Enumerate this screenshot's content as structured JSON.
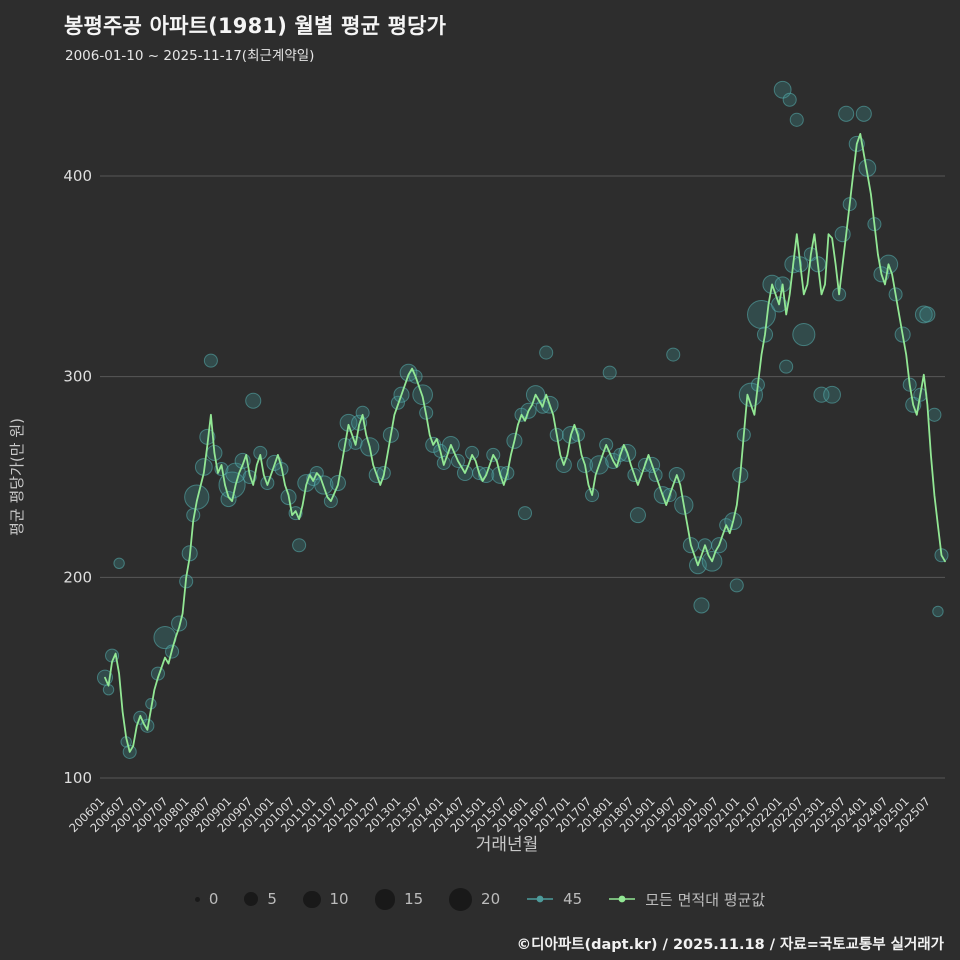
{
  "title": "봉평주공 아파트(1981) 월별 평균 평당가",
  "subtitle": "2006-01-10 ~ 2025-11-17(최근계약일)",
  "footer": "©디아파트(dapt.kr) / 2025.11.18 / 자료=국토교통부 실거래가",
  "colors": {
    "background": "#2d2d2d",
    "line": "#92e794",
    "bubble_fill": "#3f8d8d",
    "bubble_stroke": "#58b2b2",
    "grid": "#575757",
    "tick_text": "#dedede",
    "axis_title": "#c8c8c8",
    "legend_dot": "#191919",
    "teal_series": "#4d9b9b"
  },
  "legend": {
    "sizes": [
      0,
      5,
      10,
      15,
      20
    ],
    "series": [
      {
        "label": "45",
        "color": "#4d9b9b"
      },
      {
        "label": "모든 면적대 평균값",
        "color": "#92e794"
      }
    ]
  },
  "chart_data": {
    "type": "line",
    "title": "봉평주공 아파트(1981) 월별 평균 평당가",
    "xlabel": "거래년월",
    "ylabel": "평균 평당가(만 원)",
    "ylim": [
      100,
      445
    ],
    "y_ticks": [
      100,
      200,
      300,
      400
    ],
    "x_tick_step": 6,
    "start_month": "2006-01",
    "end_month": "2025-11",
    "x_ticks": [
      "200601",
      "200607",
      "200701",
      "200707",
      "200801",
      "200807",
      "200901",
      "200907",
      "201001",
      "201007",
      "201101",
      "201107",
      "201201",
      "201207",
      "201301",
      "201307",
      "201401",
      "201407",
      "201501",
      "201507",
      "201601",
      "201607",
      "201701",
      "201707",
      "201801",
      "201807",
      "201901",
      "201907",
      "202001",
      "202007",
      "202101",
      "202107",
      "202201",
      "202207",
      "202301",
      "202307",
      "202401",
      "202407",
      "202501",
      "202507"
    ],
    "series": [
      {
        "name": "모든 면적대 평균값",
        "values": [
          150,
          146,
          158,
          162,
          152,
          133,
          120,
          113,
          116,
          126,
          131,
          127,
          124,
          134,
          144,
          150,
          155,
          160,
          157,
          164,
          170,
          175,
          182,
          200,
          210,
          228,
          238,
          245,
          252,
          266,
          281,
          262,
          252,
          256,
          246,
          240,
          238,
          246,
          252,
          256,
          261,
          251,
          246,
          256,
          261,
          251,
          246,
          251,
          256,
          261,
          255,
          246,
          241,
          231,
          233,
          229,
          236,
          246,
          251,
          248,
          252,
          250,
          245,
          240,
          238,
          242,
          246,
          256,
          266,
          276,
          271,
          266,
          276,
          281,
          271,
          265,
          256,
          251,
          246,
          251,
          261,
          271,
          281,
          286,
          291,
          296,
          301,
          304,
          300,
          295,
          290,
          281,
          271,
          266,
          269,
          263,
          256,
          261,
          266,
          262,
          258,
          255,
          252,
          256,
          261,
          258,
          252,
          248,
          251,
          256,
          261,
          258,
          251,
          246,
          252,
          261,
          268,
          276,
          281,
          278,
          283,
          286,
          291,
          288,
          285,
          291,
          286,
          281,
          271,
          261,
          256,
          261,
          271,
          276,
          271,
          261,
          256,
          246,
          241,
          251,
          256,
          261,
          266,
          262,
          258,
          255,
          261,
          266,
          262,
          256,
          251,
          246,
          251,
          256,
          261,
          256,
          251,
          246,
          241,
          236,
          241,
          246,
          251,
          246,
          236,
          226,
          216,
          211,
          206,
          211,
          216,
          211,
          208,
          213,
          216,
          221,
          226,
          222,
          228,
          236,
          251,
          271,
          291,
          286,
          281,
          296,
          311,
          321,
          336,
          346,
          341,
          336,
          346,
          331,
          341,
          356,
          371,
          356,
          341,
          346,
          361,
          371,
          356,
          341,
          346,
          371,
          369,
          356,
          341,
          356,
          371,
          386,
          401,
          416,
          421,
          411,
          401,
          391,
          376,
          361,
          351,
          346,
          356,
          351,
          341,
          331,
          321,
          311,
          296,
          286,
          281,
          291,
          301,
          286,
          261,
          241,
          226,
          211,
          208
        ]
      }
    ],
    "bubbles": [
      [
        0,
        150,
        3
      ],
      [
        1,
        144,
        1
      ],
      [
        2,
        161,
        2
      ],
      [
        4,
        207,
        1
      ],
      [
        6,
        118,
        1
      ],
      [
        7,
        113,
        2
      ],
      [
        10,
        130,
        2
      ],
      [
        12,
        126,
        2
      ],
      [
        13,
        137,
        1
      ],
      [
        15,
        152,
        2
      ],
      [
        17,
        170,
        8
      ],
      [
        19,
        163,
        2
      ],
      [
        21,
        177,
        3
      ],
      [
        23,
        198,
        2
      ],
      [
        24,
        212,
        3
      ],
      [
        25,
        231,
        2
      ],
      [
        26,
        240,
        10
      ],
      [
        28,
        255,
        4
      ],
      [
        29,
        270,
        3
      ],
      [
        30,
        308,
        2
      ],
      [
        31,
        262,
        3
      ],
      [
        33,
        254,
        2
      ],
      [
        35,
        239,
        3
      ],
      [
        36,
        246,
        12
      ],
      [
        37,
        252,
        6
      ],
      [
        39,
        258,
        3
      ],
      [
        41,
        250,
        2
      ],
      [
        42,
        288,
        3
      ],
      [
        44,
        262,
        2
      ],
      [
        46,
        247,
        2
      ],
      [
        48,
        257,
        3
      ],
      [
        50,
        254,
        2
      ],
      [
        52,
        240,
        3
      ],
      [
        54,
        232,
        2
      ],
      [
        55,
        216,
        2
      ],
      [
        57,
        247,
        4
      ],
      [
        59,
        249,
        2
      ],
      [
        60,
        252,
        2
      ],
      [
        62,
        246,
        5
      ],
      [
        64,
        238,
        2
      ],
      [
        66,
        247,
        3
      ],
      [
        68,
        266,
        2
      ],
      [
        69,
        277,
        4
      ],
      [
        71,
        267,
        2
      ],
      [
        72,
        277,
        3
      ],
      [
        73,
        282,
        2
      ],
      [
        75,
        265,
        5
      ],
      [
        77,
        251,
        3
      ],
      [
        79,
        252,
        2
      ],
      [
        81,
        271,
        3
      ],
      [
        83,
        287,
        2
      ],
      [
        84,
        291,
        3
      ],
      [
        86,
        302,
        4
      ],
      [
        88,
        300,
        2
      ],
      [
        90,
        291,
        6
      ],
      [
        91,
        282,
        2
      ],
      [
        93,
        266,
        3
      ],
      [
        95,
        263,
        2
      ],
      [
        96,
        257,
        2
      ],
      [
        98,
        266,
        4
      ],
      [
        100,
        258,
        2
      ],
      [
        102,
        252,
        3
      ],
      [
        104,
        262,
        2
      ],
      [
        106,
        252,
        2
      ],
      [
        108,
        251,
        3
      ],
      [
        110,
        261,
        2
      ],
      [
        112,
        251,
        4
      ],
      [
        114,
        252,
        2
      ],
      [
        116,
        268,
        3
      ],
      [
        118,
        281,
        2
      ],
      [
        119,
        232,
        2
      ],
      [
        120,
        283,
        3
      ],
      [
        122,
        291,
        5
      ],
      [
        124,
        285,
        2
      ],
      [
        125,
        312,
        2
      ],
      [
        126,
        286,
        4
      ],
      [
        128,
        271,
        2
      ],
      [
        130,
        256,
        3
      ],
      [
        132,
        271,
        4
      ],
      [
        134,
        271,
        2
      ],
      [
        136,
        256,
        3
      ],
      [
        138,
        241,
        2
      ],
      [
        140,
        256,
        5
      ],
      [
        142,
        266,
        2
      ],
      [
        143,
        302,
        2
      ],
      [
        144,
        258,
        3
      ],
      [
        146,
        261,
        2
      ],
      [
        148,
        262,
        4
      ],
      [
        150,
        251,
        2
      ],
      [
        151,
        231,
        3
      ],
      [
        153,
        256,
        2
      ],
      [
        155,
        256,
        3
      ],
      [
        156,
        251,
        2
      ],
      [
        158,
        241,
        4
      ],
      [
        160,
        241,
        2
      ],
      [
        161,
        311,
        2
      ],
      [
        162,
        251,
        3
      ],
      [
        164,
        236,
        5
      ],
      [
        166,
        216,
        3
      ],
      [
        168,
        206,
        4
      ],
      [
        169,
        186,
        3
      ],
      [
        170,
        216,
        2
      ],
      [
        172,
        208,
        6
      ],
      [
        174,
        216,
        3
      ],
      [
        176,
        226,
        2
      ],
      [
        178,
        228,
        4
      ],
      [
        179,
        196,
        2
      ],
      [
        180,
        251,
        3
      ],
      [
        181,
        271,
        2
      ],
      [
        183,
        291,
        9
      ],
      [
        185,
        296,
        2
      ],
      [
        186,
        331,
        14
      ],
      [
        187,
        321,
        3
      ],
      [
        189,
        346,
        5
      ],
      [
        191,
        336,
        3
      ],
      [
        192,
        443,
        4
      ],
      [
        192,
        346,
        3
      ],
      [
        193,
        305,
        2
      ],
      [
        194,
        438,
        2
      ],
      [
        195,
        356,
        4
      ],
      [
        196,
        428,
        2
      ],
      [
        197,
        356,
        3
      ],
      [
        198,
        321,
        8
      ],
      [
        200,
        361,
        2
      ],
      [
        202,
        356,
        3
      ],
      [
        203,
        291,
        3
      ],
      [
        206,
        291,
        4
      ],
      [
        208,
        341,
        2
      ],
      [
        209,
        371,
        3
      ],
      [
        210,
        431,
        3
      ],
      [
        211,
        386,
        2
      ],
      [
        213,
        416,
        3
      ],
      [
        215,
        431,
        3
      ],
      [
        216,
        404,
        4
      ],
      [
        218,
        376,
        2
      ],
      [
        220,
        351,
        3
      ],
      [
        222,
        356,
        5
      ],
      [
        224,
        341,
        2
      ],
      [
        226,
        321,
        3
      ],
      [
        228,
        296,
        2
      ],
      [
        229,
        286,
        3
      ],
      [
        231,
        291,
        2
      ],
      [
        232,
        331,
        4
      ],
      [
        233,
        331,
        3
      ],
      [
        235,
        281,
        2
      ],
      [
        236,
        183,
        1
      ],
      [
        237,
        211,
        2
      ]
    ]
  }
}
